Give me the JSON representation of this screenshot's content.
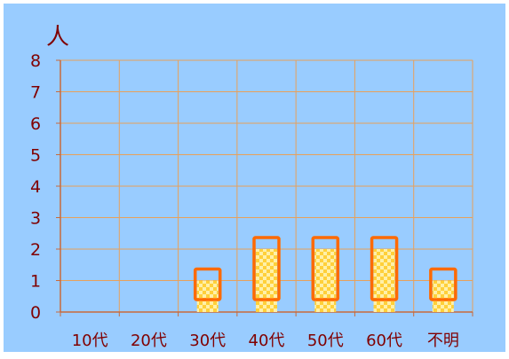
{
  "chart_data": {
    "type": "bar",
    "categories": [
      "10代",
      "20代",
      "30代",
      "40代",
      "50代",
      "60代",
      "不明"
    ],
    "values": [
      0,
      0,
      1,
      2,
      2,
      2,
      1
    ],
    "ylabel": "人",
    "y_ticks": [
      "0",
      "1",
      "2",
      "3",
      "4",
      "5",
      "6",
      "7",
      "8"
    ],
    "ylim": [
      0,
      8
    ],
    "grid": true
  },
  "colors": {
    "background": "#99ccff",
    "gridline": "#e8a05a",
    "axis": "#c9693a",
    "label_text": "#800000",
    "bar_fill": "#ffd03a",
    "bar_light": "#fff0a8",
    "bar_outline": "#ff6a00"
  }
}
